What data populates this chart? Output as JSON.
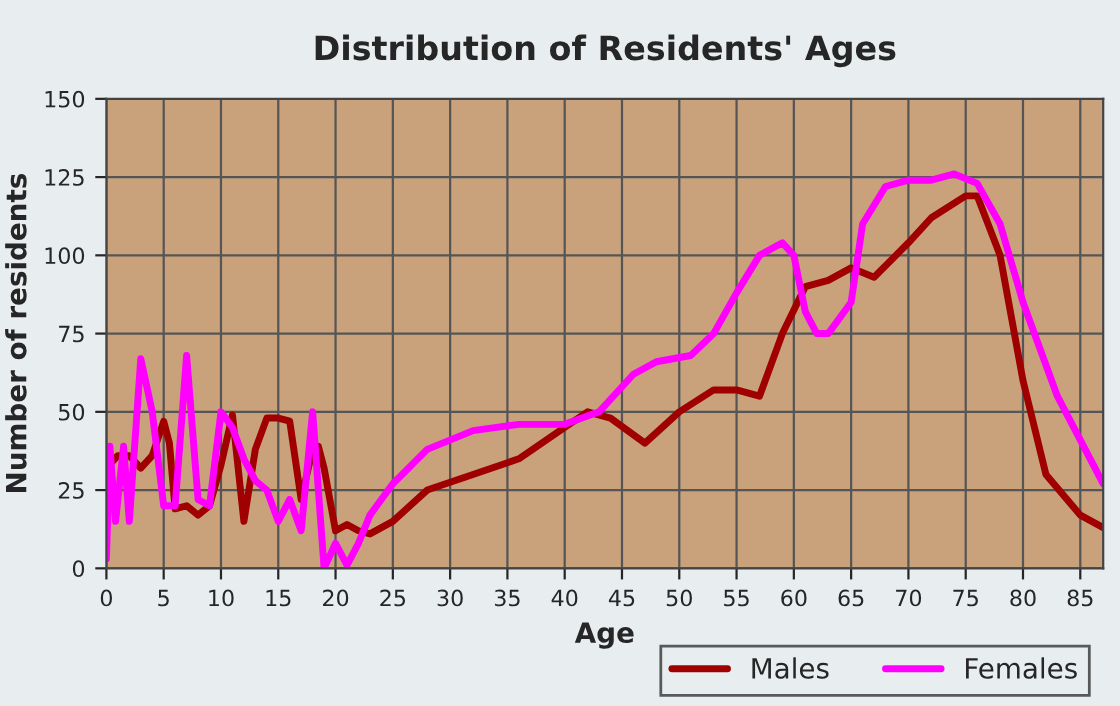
{
  "chart_data": {
    "type": "line",
    "title": "Distribution of Residents' Ages",
    "xlabel": "Age",
    "ylabel": "Number of residents",
    "xlim": [
      0,
      87
    ],
    "xticks": [
      0,
      5,
      10,
      15,
      20,
      25,
      30,
      35,
      40,
      45,
      50,
      55,
      60,
      65,
      70,
      75,
      80,
      85
    ],
    "ylim": [
      0,
      150
    ],
    "yticks": [
      0,
      25,
      50,
      75,
      100,
      125,
      150
    ],
    "grid": true,
    "legend": "bottom right",
    "marker": "none",
    "line_style": "solid",
    "series": [
      {
        "name": "Males",
        "color": "#a00000",
        "x": [
          0,
          0.5,
          1,
          2,
          3,
          4,
          5,
          5.5,
          6,
          7,
          8,
          9,
          10,
          11,
          12,
          13,
          14,
          15,
          16,
          17,
          18,
          18.5,
          19,
          20,
          21,
          22,
          23,
          25,
          28,
          32,
          36,
          40,
          42,
          44,
          47,
          50,
          53,
          55,
          57,
          59,
          61,
          63,
          65,
          67,
          70,
          72,
          75,
          76,
          78,
          80,
          82,
          85,
          87
        ],
        "values": [
          37,
          34,
          36,
          36,
          32,
          36,
          47,
          40,
          19,
          20,
          17,
          20,
          33,
          49,
          15,
          38,
          48,
          48,
          47,
          22,
          38,
          39,
          32,
          12,
          14,
          12,
          11,
          15,
          25,
          30,
          35,
          45,
          50,
          48,
          40,
          50,
          57,
          57,
          55,
          75,
          90,
          92,
          96,
          93,
          104,
          112,
          119,
          119,
          100,
          60,
          30,
          17,
          13
        ]
      },
      {
        "name": "Females",
        "color": "#ff00ff",
        "x": [
          0,
          0.3,
          0.8,
          1.5,
          2,
          3,
          4,
          5,
          6,
          7,
          8,
          9,
          10,
          11,
          12,
          13,
          14,
          15,
          16,
          17,
          18,
          18.5,
          19,
          20,
          21,
          22,
          23,
          25,
          28,
          32,
          36,
          40,
          43,
          46,
          48,
          51,
          53,
          55,
          57,
          59,
          60,
          61,
          62,
          63,
          65,
          66,
          68,
          70,
          72,
          74,
          76,
          78,
          80,
          83,
          87
        ],
        "values": [
          3,
          39,
          15,
          39,
          15,
          67,
          50,
          20,
          20,
          68,
          22,
          20,
          50,
          45,
          35,
          28,
          25,
          15,
          22,
          12,
          50,
          25,
          0,
          8,
          1,
          8,
          17,
          27,
          38,
          44,
          46,
          46,
          50,
          62,
          66,
          68,
          75,
          88,
          100,
          104,
          100,
          82,
          75,
          75,
          85,
          110,
          122,
          124,
          124,
          126,
          123,
          110,
          85,
          55,
          27
        ]
      }
    ]
  }
}
